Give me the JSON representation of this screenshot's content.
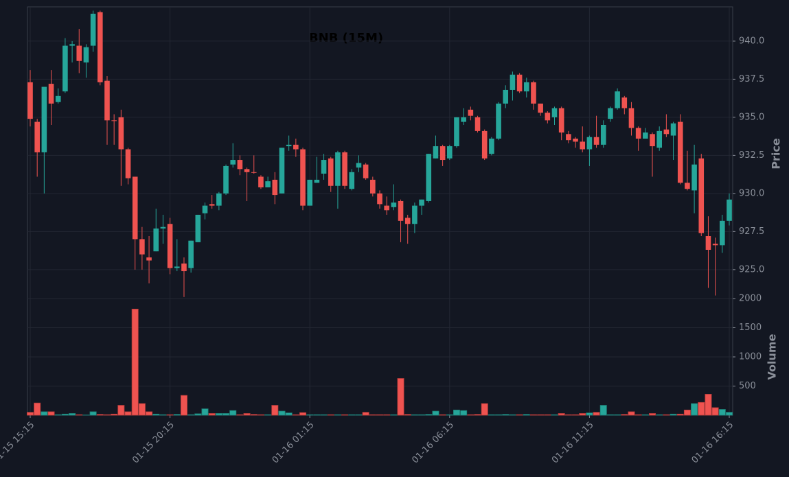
{
  "chart_data": {
    "type": "candlestick",
    "title": "BNB (15M)",
    "ylabel": "Price",
    "up_color": "#26a69a",
    "down_color": "#ef5350",
    "grid": true,
    "categories": [
      "01-15 15:15",
      null,
      null,
      null,
      null,
      null,
      null,
      null,
      null,
      null,
      null,
      null,
      null,
      null,
      null,
      null,
      null,
      null,
      null,
      null,
      "01-15 20:15",
      null,
      null,
      null,
      null,
      null,
      null,
      null,
      null,
      null,
      null,
      null,
      null,
      null,
      null,
      null,
      null,
      null,
      null,
      null,
      "01-16 01:15",
      null,
      null,
      null,
      null,
      null,
      null,
      null,
      null,
      null,
      null,
      null,
      null,
      null,
      null,
      null,
      null,
      null,
      null,
      null,
      "01-16 06:15",
      null,
      null,
      null,
      null,
      null,
      null,
      null,
      null,
      null,
      null,
      null,
      null,
      null,
      null,
      null,
      null,
      null,
      null,
      null,
      "01-16 11:15",
      null,
      null,
      null,
      null,
      null,
      null,
      null,
      null,
      null,
      null,
      null,
      null,
      null,
      null,
      null,
      null,
      null,
      null,
      null,
      "01-16 16:15"
    ],
    "open": [
      937.3,
      934.7,
      932.7,
      937.2,
      936.0,
      936.7,
      939.7,
      939.7,
      938.6,
      939.7,
      941.9,
      937.4,
      934.8,
      935.0,
      932.9,
      931.1,
      927.0,
      925.8,
      926.2,
      927.7,
      928.0,
      925.1,
      925.4,
      925.1,
      926.8,
      928.7,
      929.3,
      929.2,
      930.0,
      931.9,
      932.2,
      931.6,
      931.4,
      931.1,
      930.4,
      930.9,
      930.0,
      933.1,
      933.2,
      932.9,
      929.2,
      930.7,
      931.3,
      932.3,
      930.5,
      932.7,
      930.3,
      931.7,
      931.9,
      930.9,
      930.0,
      929.2,
      929.1,
      929.5,
      928.4,
      928.0,
      929.2,
      929.5,
      932.3,
      933.1,
      932.3,
      933.1,
      934.7,
      935.5,
      935.0,
      934.1,
      932.6,
      933.6,
      935.9,
      936.8,
      937.8,
      936.7,
      937.3,
      935.9,
      935.3,
      935.0,
      935.6,
      933.9,
      933.6,
      933.4,
      932.9,
      933.7,
      933.2,
      934.9,
      935.6,
      936.3,
      935.6,
      934.3,
      933.6,
      933.9,
      933.0,
      934.2,
      933.8,
      934.7,
      930.7,
      930.2,
      932.3,
      927.2,
      926.7,
      926.6,
      928.2
    ],
    "high": [
      938.1,
      934.9,
      937.0,
      938.1,
      936.9,
      940.2,
      940.0,
      940.8,
      939.8,
      942.0,
      942.0,
      937.7,
      935.2,
      935.5,
      933.0,
      931.1,
      927.8,
      927.2,
      929.0,
      928.6,
      928.4,
      927.0,
      925.8,
      926.9,
      928.6,
      929.4,
      929.9,
      930.1,
      931.9,
      933.3,
      932.5,
      931.7,
      932.5,
      931.2,
      931.1,
      931.4,
      933.0,
      933.8,
      933.6,
      933.0,
      930.9,
      932.4,
      932.6,
      932.4,
      932.8,
      932.8,
      931.6,
      932.5,
      932.0,
      931.1,
      930.2,
      929.8,
      930.6,
      929.6,
      928.6,
      929.4,
      929.6,
      932.6,
      933.8,
      933.2,
      933.2,
      935.0,
      935.6,
      935.7,
      935.1,
      934.2,
      933.7,
      936.0,
      937.1,
      938.0,
      937.9,
      937.6,
      937.4,
      935.9,
      935.4,
      935.7,
      935.7,
      934.1,
      933.7,
      934.4,
      933.8,
      935.1,
      934.8,
      935.7,
      936.9,
      936.4,
      936.0,
      934.4,
      934.3,
      934.0,
      934.4,
      935.2,
      934.7,
      935.2,
      932.8,
      933.2,
      932.6,
      928.5,
      927.1,
      928.6,
      930.0
    ],
    "low": [
      934.4,
      931.1,
      930.0,
      934.5,
      935.9,
      936.6,
      938.6,
      937.9,
      937.6,
      939.3,
      937.1,
      933.2,
      933.2,
      930.5,
      930.6,
      925.0,
      925.0,
      924.1,
      926.2,
      926.7,
      924.7,
      924.9,
      923.2,
      924.8,
      926.8,
      928.3,
      929.0,
      928.9,
      929.9,
      931.7,
      931.2,
      929.5,
      931.3,
      930.3,
      930.4,
      929.3,
      930.0,
      932.8,
      932.4,
      928.9,
      929.2,
      930.7,
      930.9,
      930.1,
      929.0,
      930.3,
      930.2,
      931.4,
      930.9,
      929.8,
      929.0,
      928.6,
      928.9,
      926.8,
      926.7,
      927.4,
      928.6,
      929.4,
      932.3,
      931.8,
      932.2,
      933.0,
      934.5,
      934.8,
      934.0,
      932.2,
      932.5,
      933.5,
      935.6,
      936.1,
      936.6,
      936.3,
      935.5,
      935.1,
      934.6,
      934.5,
      933.5,
      933.3,
      933.0,
      932.7,
      931.8,
      933.0,
      933.0,
      934.7,
      935.5,
      935.2,
      933.8,
      932.8,
      933.6,
      931.1,
      932.8,
      933.7,
      932.2,
      930.6,
      930.2,
      928.7,
      927.2,
      923.8,
      923.3,
      926.1,
      927.9
    ],
    "close": [
      934.9,
      932.7,
      937.0,
      935.9,
      936.4,
      939.7,
      939.8,
      938.7,
      939.6,
      941.8,
      937.3,
      934.8,
      934.8,
      932.9,
      931.0,
      927.0,
      926.0,
      925.6,
      927.7,
      927.8,
      925.1,
      925.2,
      924.9,
      926.9,
      928.6,
      929.2,
      929.2,
      930.0,
      931.8,
      932.2,
      931.6,
      931.4,
      931.4,
      930.4,
      930.8,
      929.9,
      933.0,
      933.2,
      932.9,
      929.2,
      930.9,
      930.9,
      932.2,
      930.5,
      932.7,
      930.5,
      931.4,
      932.0,
      931.0,
      930.0,
      929.3,
      928.9,
      929.4,
      928.2,
      928.0,
      929.2,
      929.6,
      932.6,
      933.1,
      932.2,
      933.1,
      935.0,
      935.0,
      935.1,
      934.1,
      932.3,
      933.6,
      935.9,
      936.8,
      937.8,
      936.7,
      937.3,
      935.9,
      935.3,
      934.8,
      935.6,
      934.0,
      933.5,
      933.4,
      932.9,
      933.7,
      933.2,
      934.5,
      935.6,
      936.7,
      935.6,
      934.3,
      933.6,
      934.0,
      933.1,
      934.1,
      933.9,
      934.6,
      930.7,
      930.3,
      931.9,
      927.4,
      926.3,
      926.6,
      928.2,
      929.6
    ],
    "ylim": [
      923.1,
      942.25
    ],
    "yticks": [
      {
        "value": 925,
        "label": "925.0"
      },
      {
        "value": 927.5,
        "label": "927.5"
      },
      {
        "value": 930,
        "label": "930.0"
      },
      {
        "value": 932.5,
        "label": "932.5"
      },
      {
        "value": 935,
        "label": "935.0"
      },
      {
        "value": 937.5,
        "label": "937.5"
      },
      {
        "value": 940,
        "label": "940.0"
      }
    ],
    "volume": {
      "ylabel": "Volume",
      "ylim": [
        0,
        2000
      ],
      "yticks": [
        500,
        1000,
        1500,
        2000
      ],
      "values": [
        50,
        210,
        60,
        60,
        10,
        20,
        30,
        10,
        5,
        60,
        15,
        10,
        20,
        170,
        60,
        1820,
        200,
        60,
        20,
        10,
        10,
        15,
        340,
        10,
        25,
        110,
        30,
        30,
        30,
        80,
        10,
        30,
        15,
        10,
        10,
        170,
        70,
        40,
        10,
        45,
        10,
        10,
        10,
        10,
        10,
        10,
        10,
        10,
        50,
        10,
        10,
        10,
        10,
        630,
        15,
        10,
        10,
        15,
        70,
        10,
        10,
        90,
        80,
        10,
        15,
        200,
        10,
        10,
        15,
        10,
        10,
        15,
        10,
        10,
        10,
        10,
        30,
        10,
        10,
        30,
        40,
        50,
        170,
        10,
        10,
        15,
        60,
        10,
        10,
        30,
        10,
        10,
        20,
        20,
        90,
        200,
        220,
        360,
        130,
        100,
        50
      ]
    }
  }
}
